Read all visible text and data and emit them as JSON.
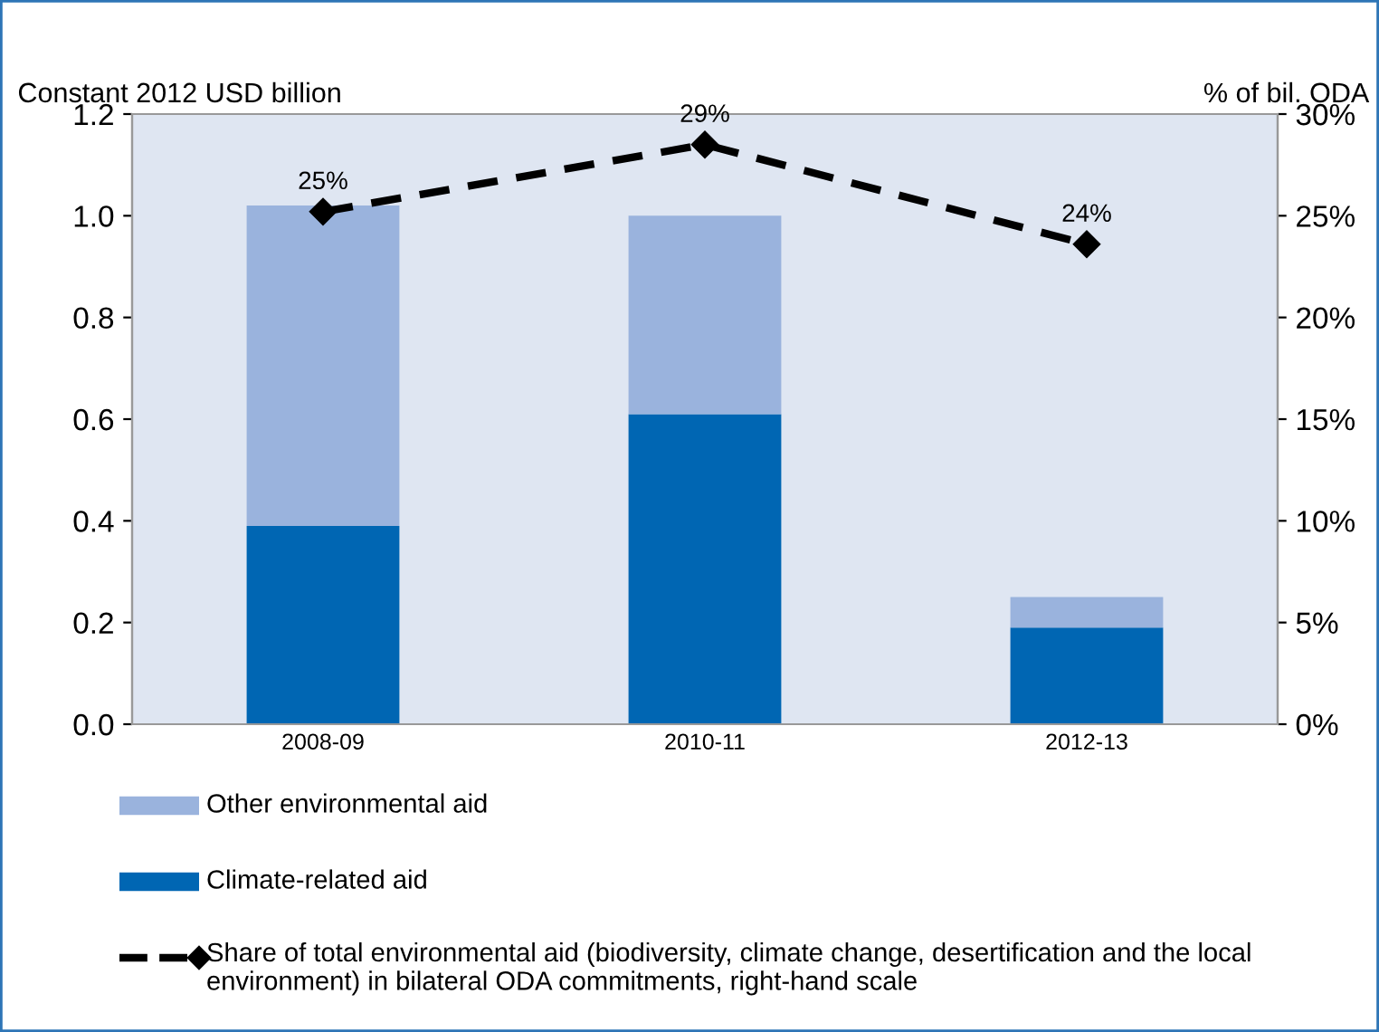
{
  "chart_data": {
    "type": "bar",
    "stacked": true,
    "ylabel": "Constant 2012 USD billion",
    "y2label": "% of bil. ODA",
    "categories": [
      "2008-09",
      "2010-11",
      "2012-13"
    ],
    "series": [
      {
        "name": "Climate-related aid",
        "color": "#0066b3",
        "values": [
          0.39,
          0.61,
          0.19
        ]
      },
      {
        "name": "Other environmental aid",
        "color": "#9ab3dd",
        "values": [
          0.63,
          0.39,
          0.06
        ]
      },
      {
        "name": "Share of total environmental aid (biodiversity, climate change, desertification and the local environment) in bilateral ODA commitments, right-hand scale",
        "type": "line",
        "axis": "y2",
        "color": "#000000",
        "marker": "diamond",
        "line_style": "dashed",
        "values": [
          25.2,
          28.5,
          23.6
        ],
        "value_labels": [
          "25%",
          "29%",
          "24%"
        ]
      }
    ],
    "ylim": [
      0,
      1.2
    ],
    "yticks": [
      {
        "value": 0,
        "label": "0.0"
      },
      {
        "value": 0.2,
        "label": "0.2"
      },
      {
        "value": 0.4,
        "label": "0.4"
      },
      {
        "value": 0.6,
        "label": "0.6"
      },
      {
        "value": 0.8,
        "label": "0.8"
      },
      {
        "value": 1.0,
        "label": "1.0"
      },
      {
        "value": 1.2,
        "label": "1.2"
      }
    ],
    "y2lim": [
      0,
      30
    ],
    "y2ticks": [
      {
        "value": 0,
        "label": "0%"
      },
      {
        "value": 5,
        "label": "5%"
      },
      {
        "value": 10,
        "label": "10%"
      },
      {
        "value": 15,
        "label": "15%"
      },
      {
        "value": 20,
        "label": "20%"
      },
      {
        "value": 25,
        "label": "25%"
      },
      {
        "value": 30,
        "label": "30%"
      }
    ],
    "legend": "bottom",
    "grid": false
  }
}
